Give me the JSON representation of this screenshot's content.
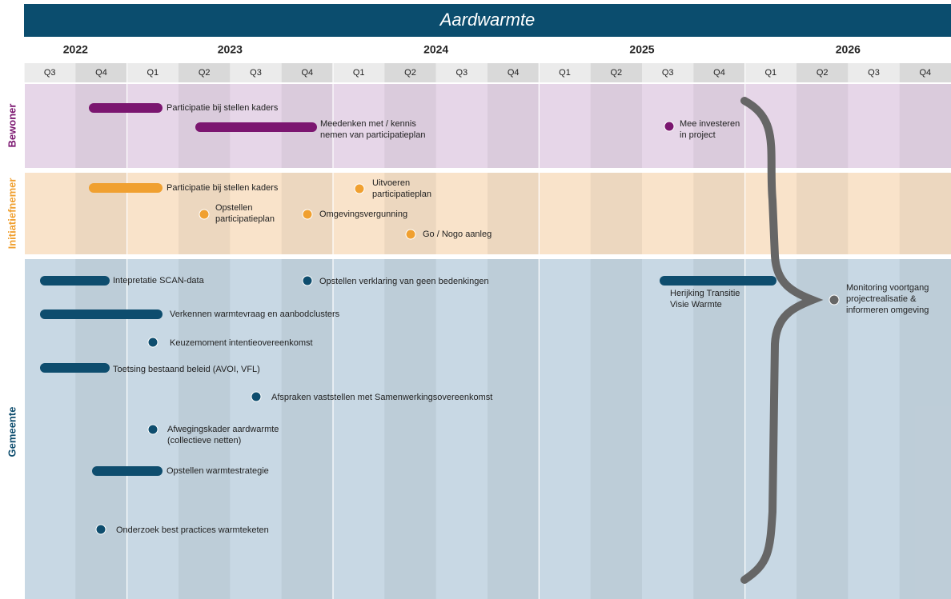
{
  "title": "Aardwarmte",
  "years": [
    "2022",
    "2023",
    "2024",
    "2025",
    "2026"
  ],
  "quarters": [
    "Q3",
    "Q4",
    "Q1",
    "Q2",
    "Q3",
    "Q4",
    "Q1",
    "Q2",
    "Q3",
    "Q4",
    "Q1",
    "Q2",
    "Q3",
    "Q4",
    "Q1",
    "Q2",
    "Q3",
    "Q4"
  ],
  "lanes": [
    {
      "name": "Bewoner",
      "items": [
        {
          "label": [
            "Participatie bij stellen kaders"
          ]
        },
        {
          "label": [
            "Meedenken met / kennis",
            "nemen van participatieplan"
          ]
        },
        {
          "label": [
            "Mee investeren",
            "in project"
          ]
        }
      ]
    },
    {
      "name": "Initiatiefnemer",
      "items": [
        {
          "label": [
            "Participatie bij stellen kaders"
          ]
        },
        {
          "label": [
            "Uitvoeren",
            "participatieplan"
          ]
        },
        {
          "label": [
            "Opstellen",
            "participatieplan"
          ]
        },
        {
          "label": [
            "Omgevingsvergunning"
          ]
        },
        {
          "label": [
            "Go / Nogo aanleg"
          ]
        }
      ]
    },
    {
      "name": "Gemeente",
      "items": [
        {
          "label": [
            "Intepretatie SCAN-data"
          ]
        },
        {
          "label": [
            "Opstellen verklaring van geen bedenkingen"
          ]
        },
        {
          "label": [
            "Herijking Transitie",
            "Visie Warmte"
          ]
        },
        {
          "label": [
            "Verkennen warmtevraag en aanbodclusters"
          ]
        },
        {
          "label": [
            "Keuzemoment intentieovereenkomst"
          ]
        },
        {
          "label": [
            "Toetsing bestaand beleid (AVOI, VFL)"
          ]
        },
        {
          "label": [
            "Afspraken vaststellen met Samenwerkingsovereenkomst"
          ]
        },
        {
          "label": [
            "Afwegingskader aardwarmte",
            "(collectieve netten)"
          ]
        },
        {
          "label": [
            "Opstellen warmtestrategie"
          ]
        },
        {
          "label": [
            "Onderzoek best practices warmteketen"
          ]
        }
      ]
    }
  ],
  "monitoring": {
    "label": [
      "Monitoring voortgang",
      "projectrealisatie &",
      "informeren omgeving"
    ]
  }
}
